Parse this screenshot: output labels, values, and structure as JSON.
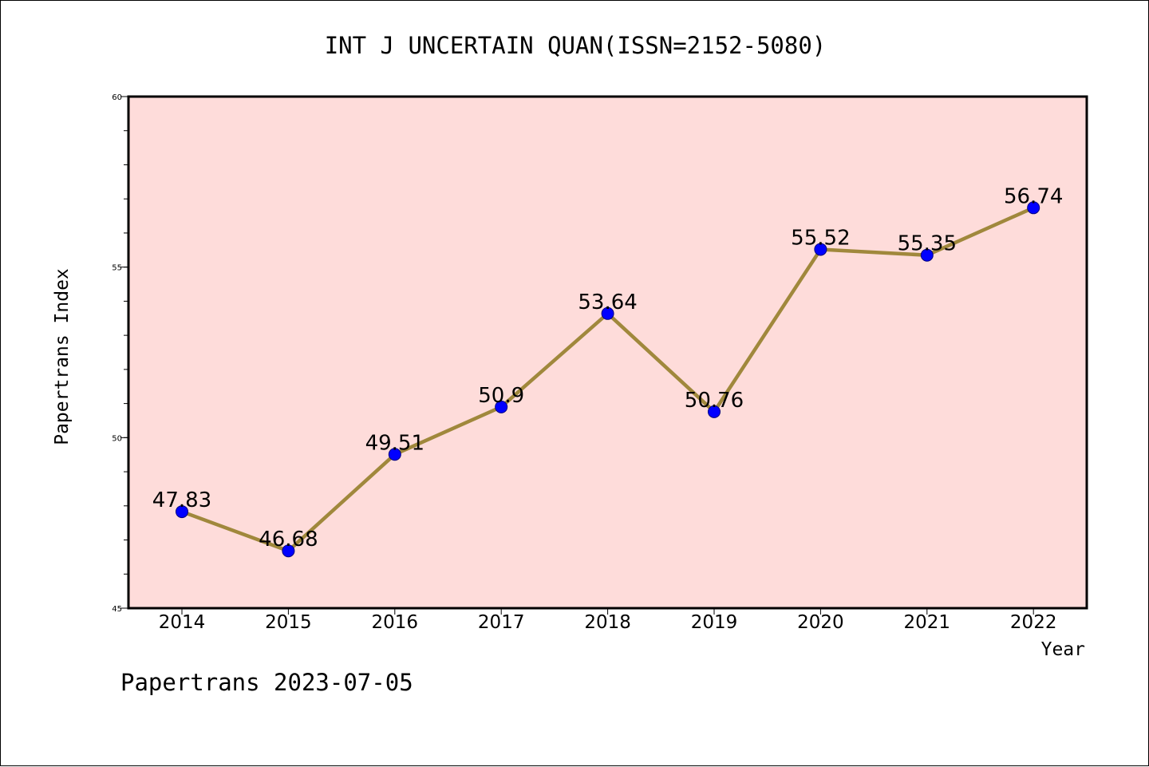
{
  "chart_data": {
    "type": "line",
    "title": "INT J UNCERTAIN QUAN(ISSN=2152-5080)",
    "xlabel": "Year",
    "ylabel": "Papertrans Index",
    "categories": [
      "2014",
      "2015",
      "2016",
      "2017",
      "2018",
      "2019",
      "2020",
      "2021",
      "2022"
    ],
    "series": [
      {
        "values": [
          47.83,
          46.68,
          49.51,
          50.9,
          53.64,
          50.76,
          55.52,
          55.35,
          56.74
        ],
        "labels": [
          "47.83",
          "46.68",
          "49.51",
          "50.9",
          "53.64",
          "50.76",
          "55.52",
          "55.35",
          "56.74"
        ]
      }
    ],
    "ylim": [
      45,
      60
    ],
    "yticks": [
      "45",
      "50",
      "55",
      "60"
    ],
    "ytick_values": [
      45,
      50,
      55,
      60
    ],
    "minor_tick_step": 1,
    "grid": false,
    "legend": "none",
    "colors": {
      "plot_background": "#fedcda",
      "line": "#a0883c",
      "marker": "#0000ff"
    }
  },
  "footer": {
    "text": "Papertrans 2023-07-05"
  }
}
